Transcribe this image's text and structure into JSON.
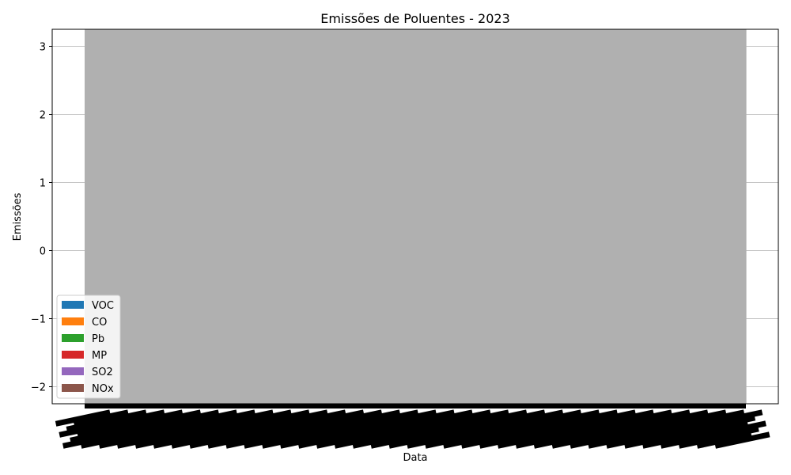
{
  "chart_data": {
    "type": "bar",
    "title": "Emissões de Poluentes - 2023",
    "xlabel": "Data",
    "ylabel": "Emissões",
    "ylim": [
      -2.25,
      3.25
    ],
    "yticks": [
      -2,
      -1,
      0,
      1,
      2,
      3
    ],
    "ytick_labels": [
      "−2",
      "−1",
      "0",
      "1",
      "2",
      "3"
    ],
    "grid": "y",
    "stacked": true,
    "legend_position": "lower-left",
    "series": [
      {
        "name": "VOC",
        "color": "#1f77b4"
      },
      {
        "name": "CO",
        "color": "#ff7f0e"
      },
      {
        "name": "Pb",
        "color": "#2ca02c"
      },
      {
        "name": "MP",
        "color": "#d62728"
      },
      {
        "name": "SO2",
        "color": "#9467bd"
      },
      {
        "name": "NOx",
        "color": "#8c564b"
      }
    ],
    "fill_color": "#b0b0b0",
    "x_tick_count": 365
  }
}
